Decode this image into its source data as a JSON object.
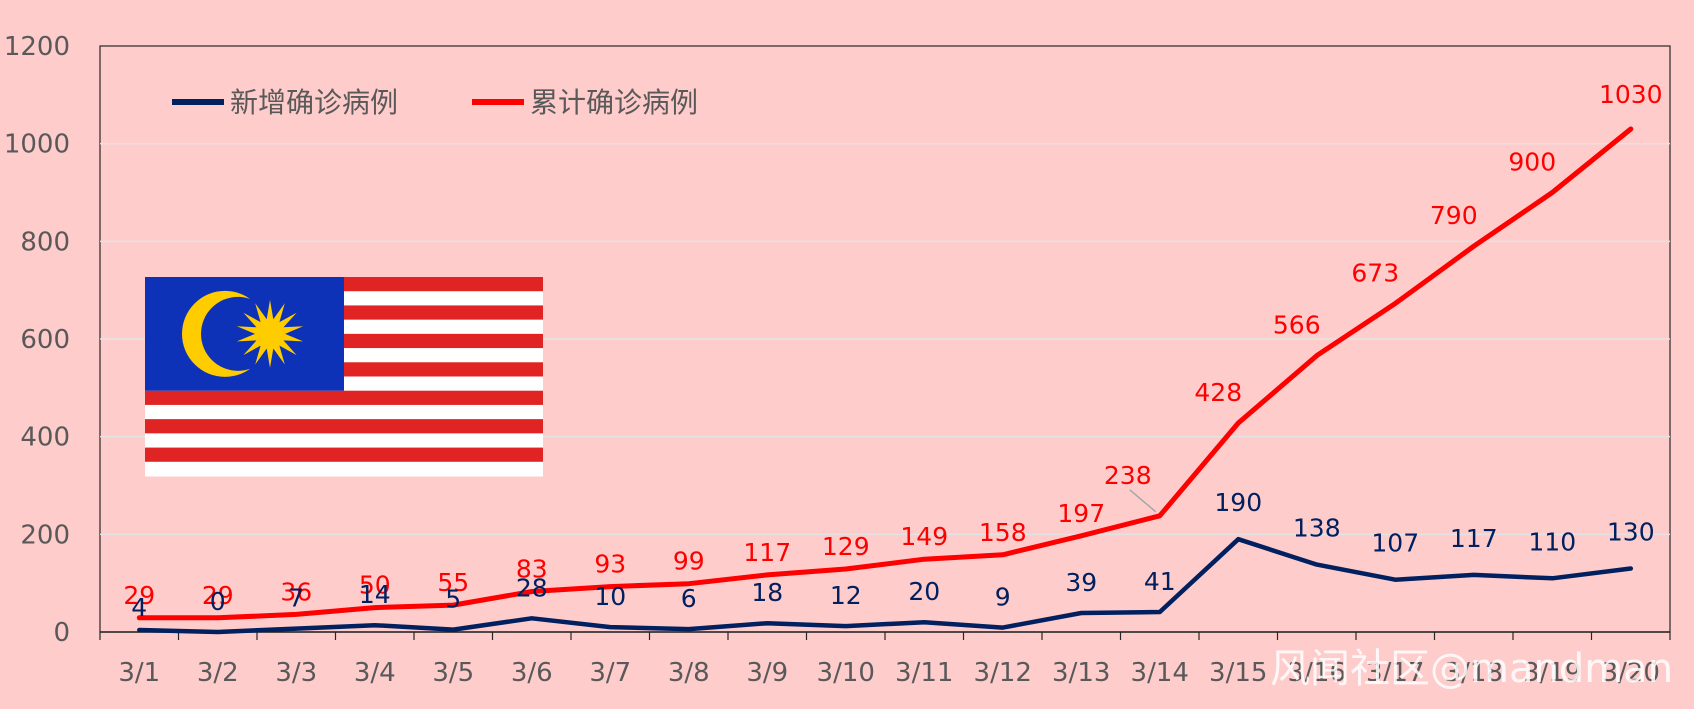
{
  "chart_data": {
    "type": "line",
    "categories": [
      "3/1",
      "3/2",
      "3/3",
      "3/4",
      "3/5",
      "3/6",
      "3/7",
      "3/8",
      "3/9",
      "3/10",
      "3/11",
      "3/12",
      "3/13",
      "3/14",
      "3/15",
      "3/16",
      "3/17",
      "3/18",
      "3/19",
      "3/20"
    ],
    "series": [
      {
        "name": "新增确诊病例",
        "color": "#002060",
        "values": [
          4,
          0,
          7,
          14,
          5,
          28,
          10,
          6,
          18,
          12,
          20,
          9,
          39,
          41,
          190,
          138,
          107,
          117,
          110,
          130
        ]
      },
      {
        "name": "累计确诊病例",
        "color": "#ff0000",
        "values": [
          29,
          29,
          36,
          50,
          55,
          83,
          93,
          99,
          117,
          129,
          149,
          158,
          197,
          238,
          428,
          566,
          673,
          790,
          900,
          1030
        ]
      }
    ],
    "yticks": [
      0,
      200,
      400,
      600,
      800,
      1000,
      1200
    ],
    "ylim": [
      0,
      1200
    ],
    "grid": true,
    "legend_position": "top-left",
    "background": "#ffcccc",
    "plot_background": "#ffcccc",
    "embedded_image": "malaysia-flag"
  },
  "watermark": "风闻社区@mandman"
}
